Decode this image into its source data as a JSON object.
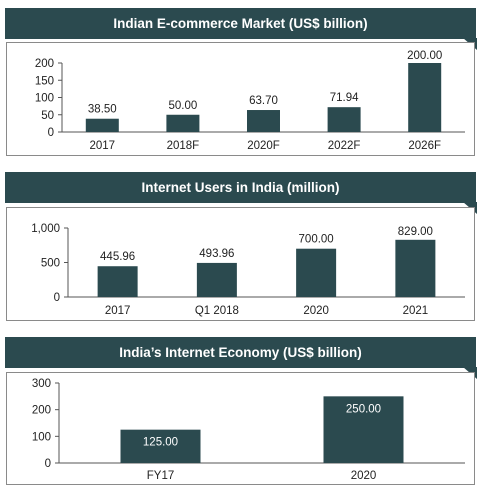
{
  "chart_data": [
    {
      "type": "bar",
      "title": "Indian E-commerce Market (US$ billion)",
      "categories": [
        "2017",
        "2018F",
        "2020F",
        "2022F",
        "2026F"
      ],
      "values": [
        38.5,
        50.0,
        63.7,
        71.94,
        200.0
      ],
      "value_labels": [
        "38.50",
        "50.00",
        "63.70",
        "71.94",
        "200.00"
      ],
      "ylim": [
        0,
        200
      ],
      "yticks": [
        "0",
        "50",
        "100",
        "150",
        "200"
      ],
      "ytick_values": [
        0,
        50,
        100,
        150,
        200
      ],
      "bar_color": "#2b4a4f",
      "grid": false,
      "xlabel": "",
      "ylabel": ""
    },
    {
      "type": "bar",
      "title": "Internet Users in India (million)",
      "categories": [
        "2017",
        "Q1 2018",
        "2020",
        "2021"
      ],
      "values": [
        445.96,
        493.96,
        700.0,
        829.0
      ],
      "value_labels": [
        "445.96",
        "493.96",
        "700.00",
        "829.00"
      ],
      "ylim": [
        0,
        1000
      ],
      "yticks": [
        "0",
        "500",
        "1,000"
      ],
      "ytick_values": [
        0,
        500,
        1000
      ],
      "bar_color": "#2b4a4f",
      "grid": false,
      "xlabel": "",
      "ylabel": ""
    },
    {
      "type": "bar",
      "title": "India’s Internet Economy (US$ billion)",
      "categories": [
        "FY17",
        "2020"
      ],
      "values": [
        125.0,
        250.0
      ],
      "value_labels": [
        "125.00",
        "250.00"
      ],
      "ylim": [
        0,
        300
      ],
      "yticks": [
        "0",
        "100",
        "200",
        "300"
      ],
      "ytick_values": [
        0,
        100,
        200,
        300
      ],
      "bar_color": "#2b4a4f",
      "grid": false,
      "xlabel": "",
      "ylabel": ""
    }
  ]
}
